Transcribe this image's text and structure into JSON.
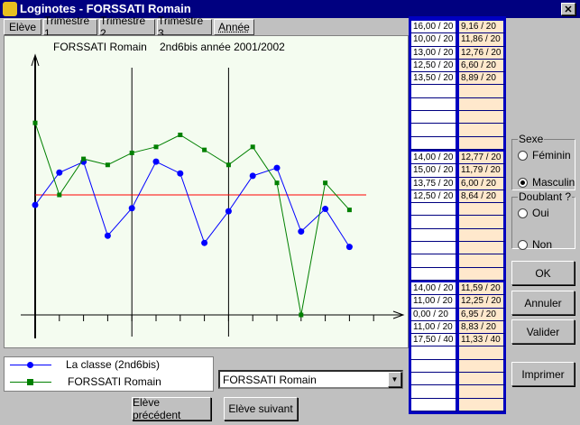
{
  "window": {
    "title": "Loginotes - FORSSATI  Romain"
  },
  "tabs": [
    "Elève",
    "Trimestre 1",
    "Trimestre 2",
    "Trimestre 3",
    "Année"
  ],
  "chart_data": {
    "type": "line",
    "title": "FORSSATI Romain",
    "subtitle": "2nd6bis année  2001/2002",
    "series": [
      {
        "name": "La classe (2nd6bis)",
        "color": "#0000ff",
        "values": [
          9.16,
          11.86,
          12.76,
          6.6,
          8.89,
          12.77,
          11.79,
          6.0,
          8.64,
          11.59,
          12.25,
          6.95,
          8.83,
          5.67
        ]
      },
      {
        "name": "FORSSATI Romain",
        "color": "#008000",
        "values": [
          16.0,
          10.0,
          13.0,
          12.5,
          13.5,
          14.0,
          15.0,
          13.75,
          12.5,
          14.0,
          11.0,
          0.0,
          11.0,
          8.75
        ]
      }
    ],
    "ylim": [
      0,
      20
    ],
    "reference_line": 10,
    "reference_color": "#ff0000"
  },
  "grades": [
    [
      [
        "16,00 / 20",
        "9,16 / 20"
      ],
      [
        "10,00 / 20",
        "11,86 / 20"
      ],
      [
        "13,00 / 20",
        "12,76 / 20"
      ],
      [
        "12,50 / 20",
        "6,60 / 20"
      ],
      [
        "13,50 / 20",
        "8,89 / 20"
      ]
    ],
    [
      [
        "14,00 / 20",
        "12,77 / 20"
      ],
      [
        "15,00 / 20",
        "11,79 / 20"
      ],
      [
        "13,75 / 20",
        "6,00 / 20"
      ],
      [
        "12,50 / 20",
        "8,64 / 20"
      ]
    ],
    [
      [
        "14,00 / 20",
        "11,59 / 20"
      ],
      [
        "11,00 / 20",
        "12,25 / 20"
      ],
      [
        "0,00 / 20",
        "6,95 / 20"
      ],
      [
        "11,00 / 20",
        "8,83 / 20"
      ],
      [
        "17,50 / 40",
        "11,33 / 40"
      ]
    ]
  ],
  "sexe": {
    "label": "Sexe",
    "options": [
      "Féminin",
      "Masculin"
    ],
    "selected": 1
  },
  "doublant": {
    "label": "Doublant ?",
    "options": [
      "Oui",
      "Non"
    ]
  },
  "buttons": [
    "OK",
    "Annuler",
    "Valider",
    "Imprimer"
  ],
  "select": "FORSSATI  Romain",
  "nav_buttons": [
    "Elève précédent",
    "Elève suivant"
  ]
}
